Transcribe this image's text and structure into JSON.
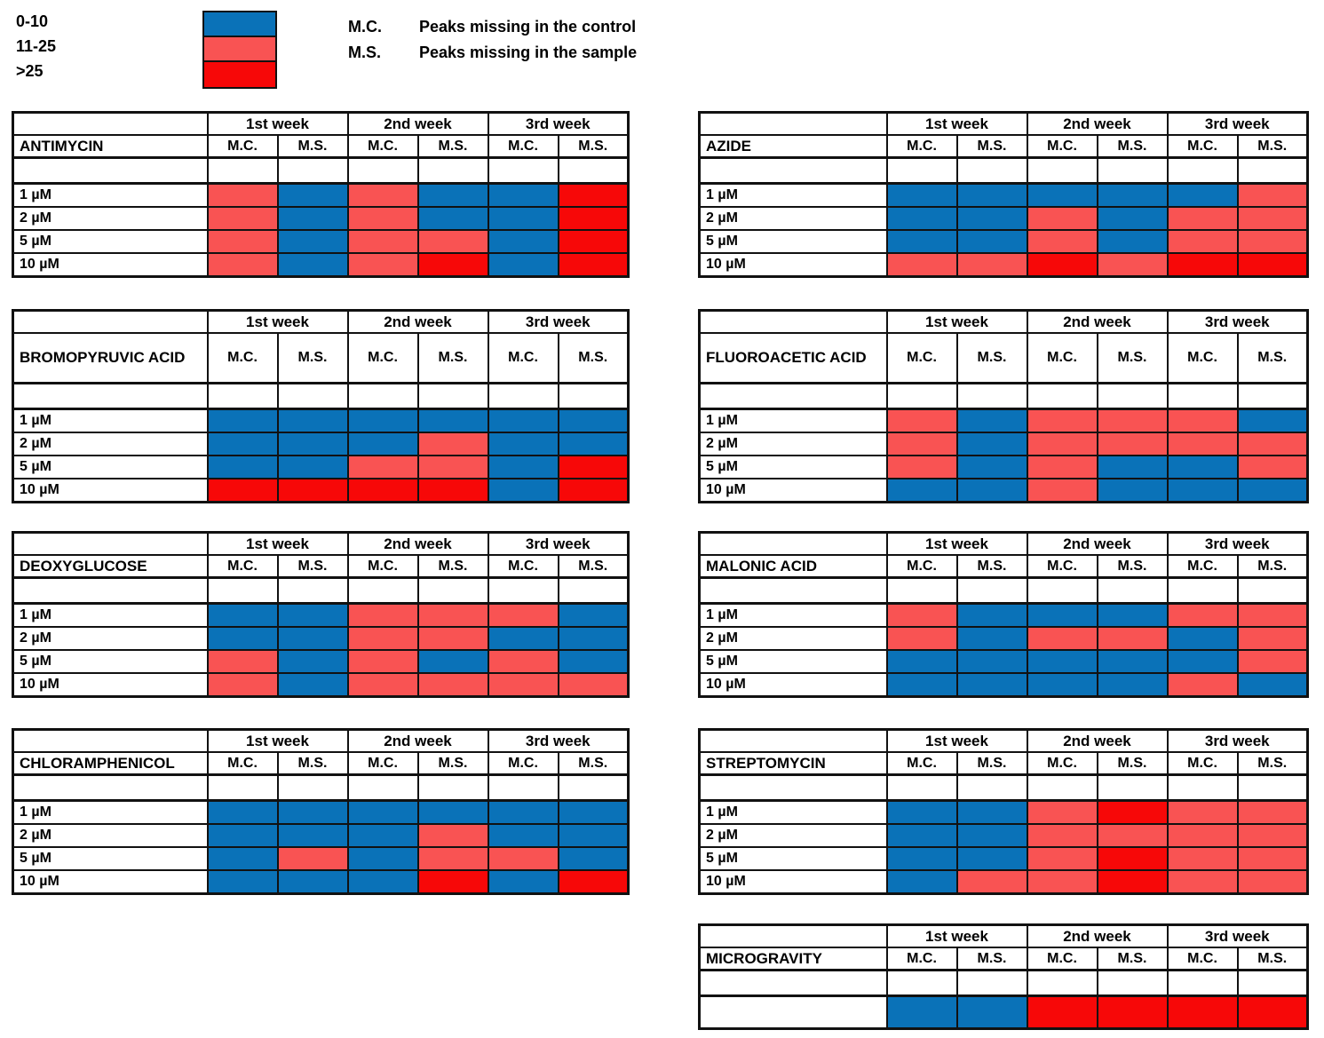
{
  "legend": {
    "bins": [
      {
        "label": "0-10",
        "color": "#0a72b8"
      },
      {
        "label": "11-25",
        "color": "#f95353"
      },
      {
        "label": ">25",
        "color": "#f70808"
      }
    ],
    "abbreviations": [
      {
        "abbr": "M.C.",
        "meaning": "Peaks missing in the control"
      },
      {
        "abbr": "M.S.",
        "meaning": "Peaks missing in the sample"
      }
    ]
  },
  "chart_data": {
    "type": "heatmap",
    "week_headers": [
      "1st week",
      "2nd week",
      "3rd week"
    ],
    "sub_headers": [
      "M.C.",
      "M.S."
    ],
    "value_bins": [
      "0-10",
      "11-25",
      ">25"
    ],
    "tables": [
      {
        "name": "ANTIMYCIN",
        "row_labels": [
          "1 µM",
          "2 µM",
          "5 µM",
          "10 µM"
        ],
        "rows": [
          [
            "11-25",
            "0-10",
            "11-25",
            "0-10",
            "0-10",
            ">25"
          ],
          [
            "11-25",
            "0-10",
            "11-25",
            "0-10",
            "0-10",
            ">25"
          ],
          [
            "11-25",
            "0-10",
            "11-25",
            "11-25",
            "0-10",
            ">25"
          ],
          [
            "11-25",
            "0-10",
            "11-25",
            ">25",
            "0-10",
            ">25"
          ]
        ]
      },
      {
        "name": "AZIDE",
        "row_labels": [
          "1 µM",
          "2 µM",
          "5 µM",
          "10 µM"
        ],
        "rows": [
          [
            "0-10",
            "0-10",
            "0-10",
            "0-10",
            "0-10",
            "11-25"
          ],
          [
            "0-10",
            "0-10",
            "11-25",
            "0-10",
            "11-25",
            "11-25"
          ],
          [
            "0-10",
            "0-10",
            "11-25",
            "0-10",
            "11-25",
            "11-25"
          ],
          [
            "11-25",
            "11-25",
            ">25",
            "11-25",
            ">25",
            ">25"
          ]
        ]
      },
      {
        "name": "BROMOPYRUVIC ACID",
        "row_labels": [
          "1 µM",
          "2 µM",
          "5 µM",
          "10 µM"
        ],
        "rows": [
          [
            "0-10",
            "0-10",
            "0-10",
            "0-10",
            "0-10",
            "0-10"
          ],
          [
            "0-10",
            "0-10",
            "0-10",
            "11-25",
            "0-10",
            "0-10"
          ],
          [
            "0-10",
            "0-10",
            "11-25",
            "11-25",
            "0-10",
            ">25"
          ],
          [
            ">25",
            ">25",
            ">25",
            ">25",
            "0-10",
            ">25"
          ]
        ]
      },
      {
        "name": "FLUOROACETIC ACID",
        "row_labels": [
          "1 µM",
          "2 µM",
          "5 µM",
          "10 µM"
        ],
        "rows": [
          [
            "11-25",
            "0-10",
            "11-25",
            "11-25",
            "11-25",
            "0-10"
          ],
          [
            "11-25",
            "0-10",
            "11-25",
            "11-25",
            "11-25",
            "11-25"
          ],
          [
            "11-25",
            "0-10",
            "11-25",
            "0-10",
            "0-10",
            "11-25"
          ],
          [
            "0-10",
            "0-10",
            "11-25",
            "0-10",
            "0-10",
            "0-10"
          ]
        ]
      },
      {
        "name": "DEOXYGLUCOSE",
        "row_labels": [
          "1 µM",
          "2 µM",
          "5 µM",
          "10 µM"
        ],
        "rows": [
          [
            "0-10",
            "0-10",
            "11-25",
            "11-25",
            "11-25",
            "0-10"
          ],
          [
            "0-10",
            "0-10",
            "11-25",
            "11-25",
            "0-10",
            "0-10"
          ],
          [
            "11-25",
            "0-10",
            "11-25",
            "0-10",
            "11-25",
            "0-10"
          ],
          [
            "11-25",
            "0-10",
            "11-25",
            "11-25",
            "11-25",
            "11-25"
          ]
        ]
      },
      {
        "name": "MALONIC ACID",
        "row_labels": [
          "1 µM",
          "2 µM",
          "5 µM",
          "10 µM"
        ],
        "rows": [
          [
            "11-25",
            "0-10",
            "0-10",
            "0-10",
            "11-25",
            "11-25"
          ],
          [
            "11-25",
            "0-10",
            "11-25",
            "11-25",
            "0-10",
            "11-25"
          ],
          [
            "0-10",
            "0-10",
            "0-10",
            "0-10",
            "0-10",
            "11-25"
          ],
          [
            "0-10",
            "0-10",
            "0-10",
            "0-10",
            "11-25",
            "0-10"
          ]
        ]
      },
      {
        "name": "CHLORAMPHENICOL",
        "row_labels": [
          "1 µM",
          "2 µM",
          "5 µM",
          "10 µM"
        ],
        "rows": [
          [
            "0-10",
            "0-10",
            "0-10",
            "0-10",
            "0-10",
            "0-10"
          ],
          [
            "0-10",
            "0-10",
            "0-10",
            "11-25",
            "0-10",
            "0-10"
          ],
          [
            "0-10",
            "11-25",
            "0-10",
            "11-25",
            "11-25",
            "0-10"
          ],
          [
            "0-10",
            "0-10",
            "0-10",
            ">25",
            "0-10",
            ">25"
          ]
        ]
      },
      {
        "name": "STREPTOMYCIN",
        "row_labels": [
          "1 µM",
          "2 µM",
          "5 µM",
          "10 µM"
        ],
        "rows": [
          [
            "0-10",
            "0-10",
            "11-25",
            ">25",
            "11-25",
            "11-25"
          ],
          [
            "0-10",
            "0-10",
            "11-25",
            "11-25",
            "11-25",
            "11-25"
          ],
          [
            "0-10",
            "0-10",
            "11-25",
            ">25",
            "11-25",
            "11-25"
          ],
          [
            "0-10",
            "11-25",
            "11-25",
            ">25",
            "11-25",
            "11-25"
          ]
        ]
      },
      {
        "name": "MICROGRAVITY",
        "row_labels": [
          ""
        ],
        "rows": [
          [
            "0-10",
            "0-10",
            ">25",
            ">25",
            ">25",
            ">25"
          ]
        ]
      }
    ]
  }
}
